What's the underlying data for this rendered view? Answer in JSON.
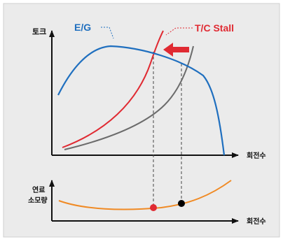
{
  "upper": {
    "y_axis_label": "토크",
    "x_axis_label": "회전수",
    "eg_label": "E/G",
    "tc_label": "T/C Stall"
  },
  "lower": {
    "y_axis_label_line1": "연료",
    "y_axis_label_line2": "소모량",
    "x_axis_label": "회전수"
  },
  "colors": {
    "background": "#ebebeb",
    "border": "#cfcfcf",
    "axis": "#111111",
    "eg_curve": "#1f6fbf",
    "tc_curve": "#e02a32",
    "grey_curve": "#6b6b6b",
    "fuel_curve": "#f08a24",
    "red_point": "#e02a32",
    "black_point": "#000000",
    "guide_line": "#444444"
  }
}
